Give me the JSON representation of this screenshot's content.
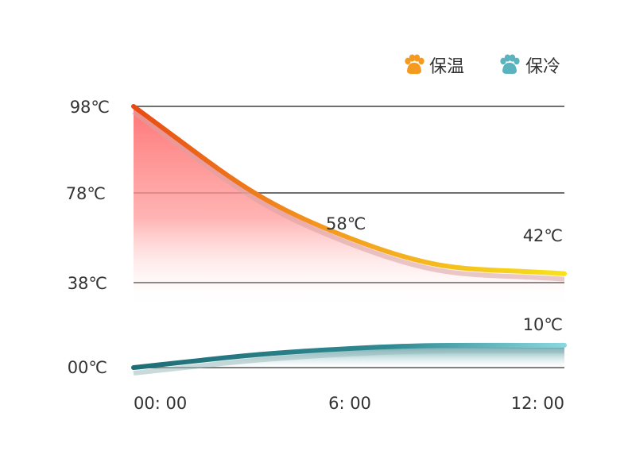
{
  "legend": [
    {
      "label": "保温",
      "icon": "paw-icon",
      "color": "#f39a1f"
    },
    {
      "label": "保冷",
      "icon": "paw-icon",
      "color": "#5ab3bd"
    }
  ],
  "chart_data": {
    "type": "area",
    "title": "",
    "xlabel": "",
    "ylabel": "",
    "x_ticks": [
      "00: 00",
      "6: 00",
      "12: 00"
    ],
    "y_ticks": [
      "98℃",
      "78℃",
      "38℃",
      "00℃"
    ],
    "x_range": [
      0,
      12
    ],
    "grid": true,
    "legend_position": "top-right",
    "series": [
      {
        "name": "保温",
        "color_start": "#e84a14",
        "color_end": "#f7e21a",
        "fill_color": "#ff7a7a",
        "points": [
          [
            0,
            98
          ],
          [
            6,
            58
          ],
          [
            12,
            42
          ]
        ],
        "labels": [
          {
            "x": 6,
            "text": "58℃"
          },
          {
            "x": 12,
            "text": "42℃"
          }
        ]
      },
      {
        "name": "保冷",
        "color_start": "#1f6e77",
        "color_end": "#8ad7de",
        "fill_color": "#2f8a92",
        "points": [
          [
            0,
            0
          ],
          [
            6,
            8.5
          ],
          [
            12,
            10
          ]
        ],
        "labels": [
          {
            "x": 12,
            "text": "10℃"
          }
        ]
      }
    ]
  }
}
